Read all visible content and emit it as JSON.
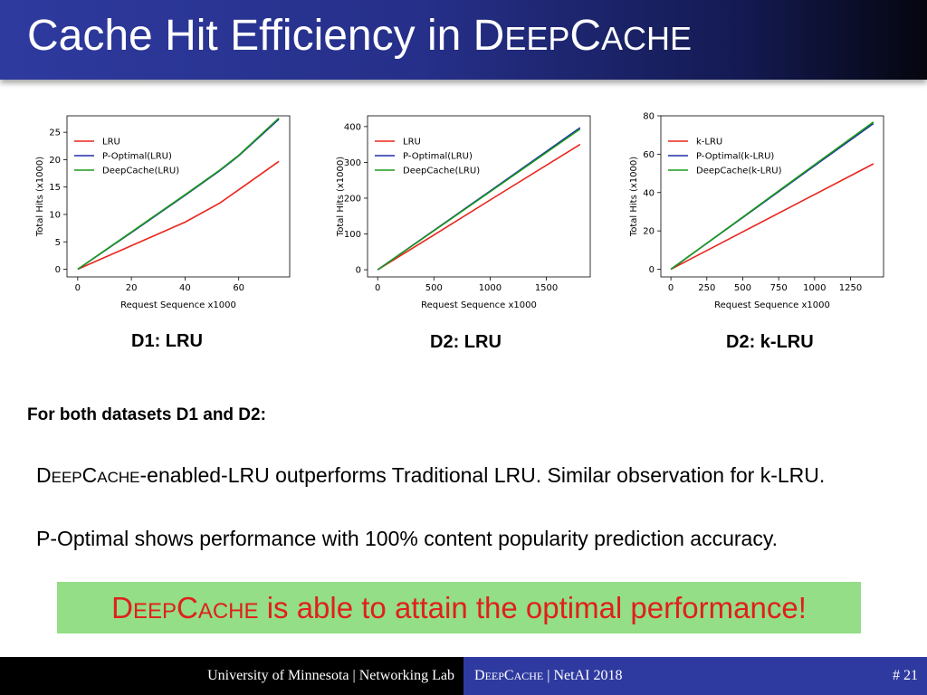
{
  "slide": {
    "title_prefix": "Cache Hit Efficiency in ",
    "title_sc_D": "D",
    "title_sc_eep": "EEP",
    "title_sc_C": "C",
    "title_sc_ache": "ACHE",
    "heading": "For both datasets D1 and D2:",
    "bullet1": {
      "sc_D": "D",
      "sc_eep": "EEP",
      "sc_C": "C",
      "sc_ache": "ACHE",
      "text": "-enabled-LRU outperforms Traditional LRU. Similar observation for k-LRU."
    },
    "bullet2": "P-Optimal shows performance with 100% content popularity prediction accuracy.",
    "highlight": {
      "sc_D": "D",
      "sc_eep": "EEP",
      "sc_C": "C",
      "sc_ache": "ACHE",
      "text": " is able to attain the optimal performance!"
    }
  },
  "footer": {
    "left": "University of Minnesota | Networking Lab",
    "mid_sc_D": "D",
    "mid_sc_eep": "EEP",
    "mid_sc_C": "C",
    "mid_sc_ache": "ACHE",
    "mid_rest": " | NetAI 2018",
    "page": "# 21"
  },
  "colors": {
    "lru": "#e8251c",
    "poptimal": "#1f2fa8",
    "deepcache": "#1a9a1a"
  },
  "chart_data": [
    {
      "type": "line",
      "caption": "D1: LRU",
      "xlabel": "Request Sequence x1000",
      "ylabel": "Total Hits (x1000)",
      "xlim": [
        -4,
        79
      ],
      "ylim": [
        -1.4,
        28
      ],
      "xticks": [
        0,
        20,
        40,
        60
      ],
      "yticks": [
        0,
        5,
        10,
        15,
        20,
        25
      ],
      "legend": "top-left",
      "series": [
        {
          "name": "LRU",
          "x": [
            0,
            20,
            40,
            53,
            60,
            75
          ],
          "y": [
            0,
            4.3,
            8.6,
            12.1,
            14.5,
            19.7
          ]
        },
        {
          "name": "P-Optimal(LRU)",
          "x": [
            0,
            20,
            40,
            53,
            60,
            75
          ],
          "y": [
            0,
            6.7,
            13.5,
            18.0,
            20.7,
            27.4
          ]
        },
        {
          "name": "DeepCache(LRU)",
          "x": [
            0,
            20,
            40,
            53,
            60,
            75
          ],
          "y": [
            0,
            6.8,
            13.6,
            18.1,
            20.8,
            27.6
          ]
        }
      ]
    },
    {
      "type": "line",
      "caption": "D2: LRU",
      "xlabel": "Request Sequence x1000",
      "ylabel": "Total Hits (x1000)",
      "xlim": [
        -90,
        1890
      ],
      "ylim": [
        -20,
        430
      ],
      "xticks": [
        0,
        500,
        1000,
        1500
      ],
      "yticks": [
        0,
        100,
        200,
        300,
        400
      ],
      "legend": "top-left",
      "series": [
        {
          "name": "LRU",
          "x": [
            0,
            500,
            1000,
            1800
          ],
          "y": [
            0,
            97,
            195,
            350
          ]
        },
        {
          "name": "P-Optimal(LRU)",
          "x": [
            0,
            500,
            1000,
            1800
          ],
          "y": [
            0,
            110,
            220,
            397
          ]
        },
        {
          "name": "DeepCache(LRU)",
          "x": [
            0,
            500,
            1000,
            1800
          ],
          "y": [
            0,
            109,
            218,
            393
          ]
        }
      ]
    },
    {
      "type": "line",
      "caption": "D2: k-LRU",
      "xlabel": "Request Sequence x1000",
      "ylabel": "Total Hits (x1000)",
      "xlim": [
        -70,
        1480
      ],
      "ylim": [
        -4,
        80
      ],
      "xticks": [
        0,
        250,
        500,
        750,
        1000,
        1250
      ],
      "yticks": [
        0,
        20,
        40,
        60,
        80
      ],
      "legend": "top-left",
      "series": [
        {
          "name": "k-LRU",
          "x": [
            0,
            500,
            1000,
            1410
          ],
          "y": [
            0,
            19.5,
            39,
            55
          ]
        },
        {
          "name": "P-Optimal(k-LRU)",
          "x": [
            0,
            500,
            1000,
            1410
          ],
          "y": [
            0,
            27,
            54,
            76
          ]
        },
        {
          "name": "DeepCache(k-LRU)",
          "x": [
            0,
            500,
            1000,
            1410
          ],
          "y": [
            0,
            27.2,
            54.5,
            76.8
          ]
        }
      ]
    }
  ]
}
